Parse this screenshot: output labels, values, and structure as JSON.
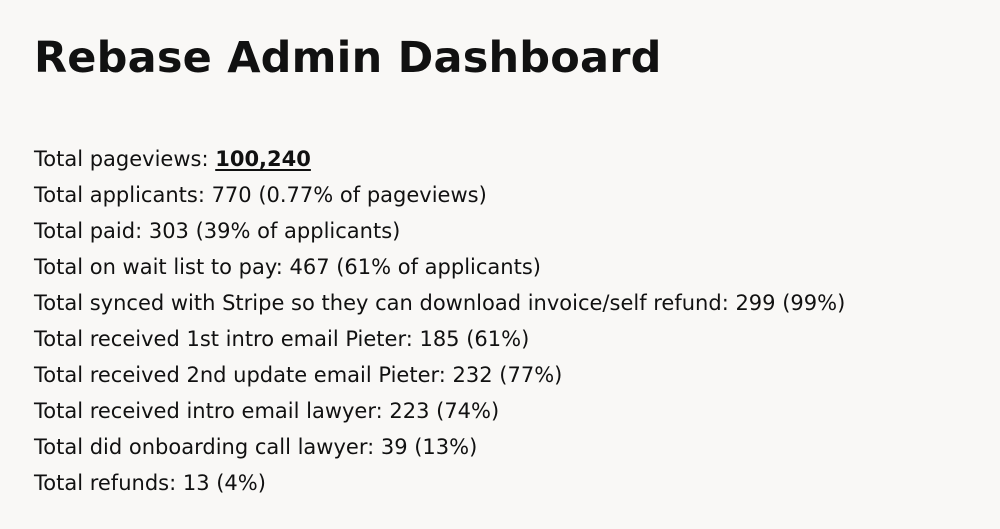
{
  "page": {
    "title": "Rebase Admin Dashboard"
  },
  "stats": {
    "pageviews_label": "Total pageviews: ",
    "pageviews_value": "100,240",
    "lines": [
      "Total applicants: 770 (0.77% of pageviews)",
      "Total paid: 303 (39% of applicants)",
      "Total on wait list to pay: 467 (61% of applicants)",
      "Total synced with Stripe so they can download invoice/self refund: 299 (99%)",
      "Total received 1st intro email Pieter: 185 (61%)",
      "Total received 2nd update email Pieter: 232 (77%)",
      "Total received intro email lawyer: 223 (74%)",
      "Total did onboarding call lawyer: 39 (13%)",
      "Total refunds: 13 (4%)"
    ]
  }
}
